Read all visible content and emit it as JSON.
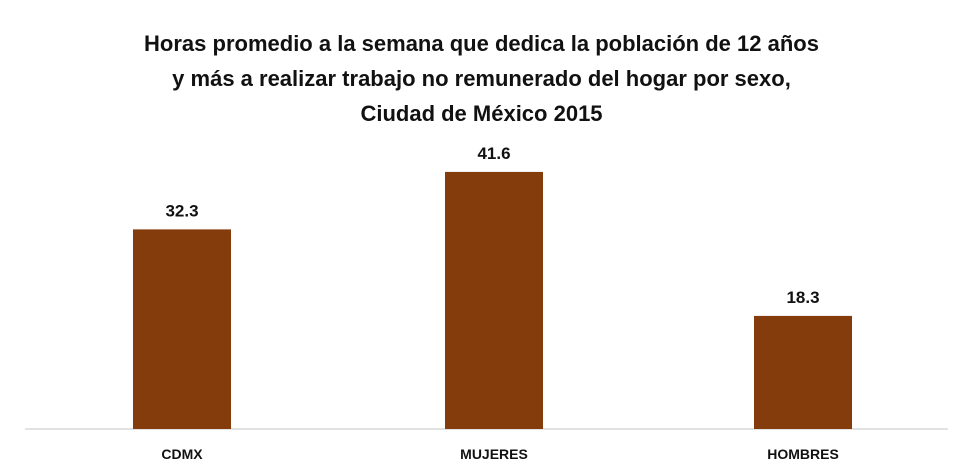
{
  "chart_data": {
    "type": "bar",
    "title": "Horas promedio a la semana que dedica la población de 12 años\ny más a realizar trabajo no remunerado del hogar por sexo,\nCiudad de México 2015",
    "categories": [
      "CDMX",
      "MUJERES",
      "HOMBRES"
    ],
    "values": [
      32.3,
      41.6,
      18.3
    ],
    "value_labels": [
      "32.3",
      "41.6",
      "18.3"
    ],
    "xlabel": "",
    "ylabel": "",
    "ylim": [
      0,
      50
    ],
    "grid": false,
    "legend": "none",
    "bar_color": "#843C0C",
    "axis_color": "#D9D9D9"
  }
}
